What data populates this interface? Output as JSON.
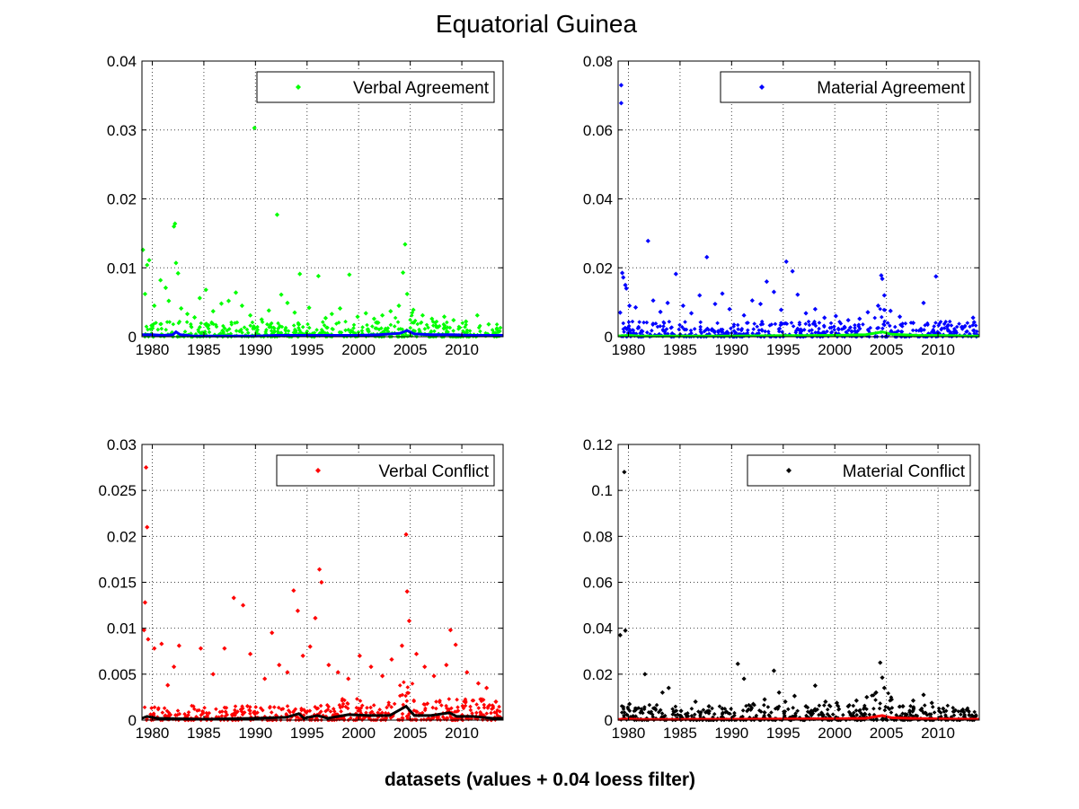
{
  "figure": {
    "title": "Equatorial Guinea",
    "xlabel": "datasets (values + 0.04 loess filter)"
  },
  "chart_data": [
    {
      "type": "scatter",
      "legend": "Verbal Agreement",
      "legend_position": "top-right",
      "point_color": "#00ff00",
      "trend_color": "#0000ff",
      "xlim": [
        1979,
        2014
      ],
      "ylim": [
        0,
        0.04
      ],
      "xticks": [
        1980,
        1985,
        1990,
        1995,
        2000,
        2005,
        2010
      ],
      "xtick_labels": [
        "1980",
        "1985",
        "1990",
        "1995",
        "2000",
        "2005",
        "2010"
      ],
      "yticks": [
        0,
        0.01,
        0.02,
        0.03,
        0.04
      ],
      "ytick_labels": [
        "0",
        "0.01",
        "0.02",
        "0.03",
        "0.04"
      ],
      "grid": true,
      "points": [
        [
          1979.1,
          0.0126
        ],
        [
          1979.5,
          0.0104
        ],
        [
          1979.7,
          0.0111
        ],
        [
          1979.3,
          0.0062
        ],
        [
          1980.2,
          0.0045
        ],
        [
          1980.8,
          0.0082
        ],
        [
          1981.3,
          0.0071
        ],
        [
          1981.6,
          0.0052
        ],
        [
          1982.1,
          0.016
        ],
        [
          1982.2,
          0.0164
        ],
        [
          1982.3,
          0.0107
        ],
        [
          1982.5,
          0.0092
        ],
        [
          1982.8,
          0.0041
        ],
        [
          1983.4,
          0.0033
        ],
        [
          1984.1,
          0.0028
        ],
        [
          1984.6,
          0.0056
        ],
        [
          1985.2,
          0.0068
        ],
        [
          1985.9,
          0.0037
        ],
        [
          1986.7,
          0.0048
        ],
        [
          1987.4,
          0.0052
        ],
        [
          1988.1,
          0.0064
        ],
        [
          1988.7,
          0.0045
        ],
        [
          1989.5,
          0.0031
        ],
        [
          1989.9,
          0.0303
        ],
        [
          1990.6,
          0.0025
        ],
        [
          1991.3,
          0.0038
        ],
        [
          1992.1,
          0.0177
        ],
        [
          1992.5,
          0.0061
        ],
        [
          1993.1,
          0.0049
        ],
        [
          1993.8,
          0.0035
        ],
        [
          1994.3,
          0.0091
        ],
        [
          1995.2,
          0.0042
        ],
        [
          1996.1,
          0.0088
        ],
        [
          1996.8,
          0.0027
        ],
        [
          1997.4,
          0.0033
        ],
        [
          1998.2,
          0.0041
        ],
        [
          1999.1,
          0.009
        ],
        [
          1999.9,
          0.0029
        ],
        [
          2000.7,
          0.0034
        ],
        [
          2001.5,
          0.0026
        ],
        [
          2002.3,
          0.0031
        ],
        [
          2003.1,
          0.0037
        ],
        [
          2003.9,
          0.0045
        ],
        [
          2004.3,
          0.0093
        ],
        [
          2004.5,
          0.0134
        ],
        [
          2004.7,
          0.0062
        ],
        [
          2005.3,
          0.0039
        ],
        [
          2006.2,
          0.0031
        ],
        [
          2007.1,
          0.0026
        ],
        [
          2008.3,
          0.0029
        ],
        [
          2009.2,
          0.0024
        ],
        [
          2010.4,
          0.0022
        ],
        [
          2011.5,
          0.0031
        ],
        [
          2012.6,
          0.0018
        ],
        [
          2013.4,
          0.0012
        ]
      ],
      "trend": [
        [
          1979,
          0.0003
        ],
        [
          1980,
          0.0003
        ],
        [
          1981,
          0.0002
        ],
        [
          1982,
          0.0003
        ],
        [
          1982.3,
          0.0007
        ],
        [
          1982.7,
          0.0003
        ],
        [
          1984,
          0.0001
        ],
        [
          1986,
          0.0001
        ],
        [
          1988,
          0.0001
        ],
        [
          1990,
          0.0001
        ],
        [
          1992,
          0.0002
        ],
        [
          1994,
          0.0002
        ],
        [
          1996,
          0.0002
        ],
        [
          1998,
          0.0002
        ],
        [
          2000,
          0.0002
        ],
        [
          2002,
          0.0003
        ],
        [
          2004,
          0.0005
        ],
        [
          2004.7,
          0.0009
        ],
        [
          2005.4,
          0.0004
        ],
        [
          2007,
          0.0003
        ],
        [
          2009,
          0.0003
        ],
        [
          2011,
          0.0002
        ],
        [
          2013,
          0.0002
        ],
        [
          2014,
          0.0002
        ]
      ]
    },
    {
      "type": "scatter",
      "legend": "Material Agreement",
      "legend_position": "top-right",
      "point_color": "#0000ff",
      "trend_color": "#00ff00",
      "xlim": [
        1979,
        2014
      ],
      "ylim": [
        0,
        0.08
      ],
      "xticks": [
        1980,
        1985,
        1990,
        1995,
        2000,
        2005,
        2010
      ],
      "xtick_labels": [
        "1980",
        "1985",
        "1990",
        "1995",
        "2000",
        "2005",
        "2010"
      ],
      "yticks": [
        0,
        0.02,
        0.04,
        0.06,
        0.08
      ],
      "ytick_labels": [
        "0",
        "0.02",
        "0.04",
        "0.06",
        "0.08"
      ],
      "grid": true,
      "points": [
        [
          1979.3,
          0.073
        ],
        [
          1979.3,
          0.0678
        ],
        [
          1979.4,
          0.0185
        ],
        [
          1979.5,
          0.0172
        ],
        [
          1979.7,
          0.015
        ],
        [
          1979.8,
          0.014
        ],
        [
          1979.2,
          0.007
        ],
        [
          1980.1,
          0.009
        ],
        [
          1980.7,
          0.0085
        ],
        [
          1981.9,
          0.0278
        ],
        [
          1982.4,
          0.0105
        ],
        [
          1983.1,
          0.0072
        ],
        [
          1983.8,
          0.0098
        ],
        [
          1984.6,
          0.0182
        ],
        [
          1985.3,
          0.009
        ],
        [
          1986.1,
          0.0068
        ],
        [
          1986.9,
          0.012
        ],
        [
          1987.6,
          0.0231
        ],
        [
          1988.4,
          0.0095
        ],
        [
          1989.1,
          0.0125
        ],
        [
          1989.8,
          0.008
        ],
        [
          1991.2,
          0.0062
        ],
        [
          1992.0,
          0.0105
        ],
        [
          1992.8,
          0.0095
        ],
        [
          1993.4,
          0.016
        ],
        [
          1994.1,
          0.013
        ],
        [
          1994.8,
          0.0078
        ],
        [
          1995.3,
          0.0218
        ],
        [
          1995.9,
          0.019
        ],
        [
          1996.4,
          0.0122
        ],
        [
          1997.2,
          0.0068
        ],
        [
          1998.1,
          0.008
        ],
        [
          1999.0,
          0.0055
        ],
        [
          2000.1,
          0.006
        ],
        [
          2001.3,
          0.0048
        ],
        [
          2002.4,
          0.0052
        ],
        [
          2003.2,
          0.0071
        ],
        [
          2004.2,
          0.009
        ],
        [
          2004.5,
          0.0178
        ],
        [
          2004.6,
          0.0168
        ],
        [
          2004.8,
          0.012
        ],
        [
          2005.4,
          0.0075
        ],
        [
          2006.3,
          0.0058
        ],
        [
          2007.6,
          0.004
        ],
        [
          2008.6,
          0.0098
        ],
        [
          2009.8,
          0.0175
        ],
        [
          2010.9,
          0.003
        ],
        [
          2012.3,
          0.0028
        ],
        [
          2013.4,
          0.0055
        ],
        [
          2013.5,
          0.0042
        ]
      ],
      "trend": [
        [
          1979,
          0.0002
        ],
        [
          1980,
          0.0004
        ],
        [
          1981,
          0.0002
        ],
        [
          1985,
          0.0002
        ],
        [
          1990,
          0.0002
        ],
        [
          1995,
          0.0003
        ],
        [
          2000,
          0.0004
        ],
        [
          2003,
          0.0006
        ],
        [
          2004.6,
          0.0014
        ],
        [
          2005.5,
          0.0007
        ],
        [
          2008,
          0.0004
        ],
        [
          2011,
          0.0003
        ],
        [
          2013,
          0.0002
        ],
        [
          2014,
          0.0002
        ]
      ]
    },
    {
      "type": "scatter",
      "legend": "Verbal Conflict",
      "legend_position": "top-right",
      "point_color": "#ff0000",
      "trend_color": "#000000",
      "xlim": [
        1979,
        2014
      ],
      "ylim": [
        0,
        0.03
      ],
      "xticks": [
        1980,
        1985,
        1990,
        1995,
        2000,
        2005,
        2010
      ],
      "xtick_labels": [
        "1980",
        "1985",
        "1990",
        "1995",
        "2000",
        "2005",
        "2010"
      ],
      "yticks": [
        0,
        0.005,
        0.01,
        0.015,
        0.02,
        0.025,
        0.03
      ],
      "ytick_labels": [
        "0",
        "0.005",
        "0.01",
        "0.015",
        "0.02",
        "0.025",
        "0.03"
      ],
      "grid": true,
      "points": [
        [
          1979.4,
          0.0275
        ],
        [
          1979.5,
          0.021
        ],
        [
          1979.3,
          0.0128
        ],
        [
          1979.2,
          0.0098
        ],
        [
          1979.6,
          0.0088
        ],
        [
          1980.2,
          0.0078
        ],
        [
          1980.9,
          0.0083
        ],
        [
          1981.5,
          0.0038
        ],
        [
          1982.1,
          0.0058
        ],
        [
          1982.6,
          0.0081
        ],
        [
          1984.7,
          0.0078
        ],
        [
          1985.9,
          0.005
        ],
        [
          1987.0,
          0.0078
        ],
        [
          1987.9,
          0.0133
        ],
        [
          1988.8,
          0.0125
        ],
        [
          1989.5,
          0.0072
        ],
        [
          1990.9,
          0.0045
        ],
        [
          1991.6,
          0.0095
        ],
        [
          1992.3,
          0.006
        ],
        [
          1993.1,
          0.0052
        ],
        [
          1993.7,
          0.0141
        ],
        [
          1994.1,
          0.0119
        ],
        [
          1994.6,
          0.007
        ],
        [
          1995.3,
          0.008
        ],
        [
          1995.8,
          0.0111
        ],
        [
          1996.2,
          0.0164
        ],
        [
          1996.4,
          0.015
        ],
        [
          1997.1,
          0.006
        ],
        [
          1998.0,
          0.0052
        ],
        [
          1999.0,
          0.0045
        ],
        [
          2000.1,
          0.007
        ],
        [
          2001.2,
          0.0058
        ],
        [
          2002.3,
          0.0048
        ],
        [
          2003.2,
          0.0066
        ],
        [
          2004.2,
          0.0081
        ],
        [
          2004.6,
          0.0202
        ],
        [
          2004.7,
          0.014
        ],
        [
          2004.9,
          0.0108
        ],
        [
          2005.6,
          0.0072
        ],
        [
          2006.4,
          0.0058
        ],
        [
          2007.3,
          0.0048
        ],
        [
          2008.5,
          0.006
        ],
        [
          2008.9,
          0.0098
        ],
        [
          2009.4,
          0.0082
        ],
        [
          2010.5,
          0.0052
        ],
        [
          2011.6,
          0.004
        ],
        [
          2012.4,
          0.0035
        ],
        [
          2013.3,
          0.002
        ]
      ],
      "trend": [
        [
          1979,
          0.0002
        ],
        [
          1979.5,
          0.0004
        ],
        [
          1980.5,
          0.0002
        ],
        [
          1985,
          0.0001
        ],
        [
          1990,
          0.0002
        ],
        [
          1993,
          0.0003
        ],
        [
          1994.2,
          0.0007
        ],
        [
          1994.7,
          0.0002
        ],
        [
          1996,
          0.0005
        ],
        [
          1997,
          0.0002
        ],
        [
          1999,
          0.0006
        ],
        [
          2001,
          0.0005
        ],
        [
          2003,
          0.0005
        ],
        [
          2004.6,
          0.0015
        ],
        [
          2005.4,
          0.0005
        ],
        [
          2007,
          0.0005
        ],
        [
          2008.8,
          0.0008
        ],
        [
          2009.5,
          0.0004
        ],
        [
          2011,
          0.0004
        ],
        [
          2013,
          0.0002
        ],
        [
          2014,
          0.0002
        ]
      ]
    },
    {
      "type": "scatter",
      "legend": "Material Conflict",
      "legend_position": "top-right",
      "point_color": "#000000",
      "trend_color": "#ff0000",
      "xlim": [
        1979,
        2014
      ],
      "ylim": [
        0,
        0.12
      ],
      "xticks": [
        1980,
        1985,
        1990,
        1995,
        2000,
        2005,
        2010
      ],
      "xtick_labels": [
        "1980",
        "1985",
        "1990",
        "1995",
        "2000",
        "2005",
        "2010"
      ],
      "yticks": [
        0,
        0.02,
        0.04,
        0.06,
        0.08,
        0.1,
        0.12
      ],
      "ytick_labels": [
        "0",
        "0.02",
        "0.04",
        "0.06",
        "0.08",
        "0.1",
        "0.12"
      ],
      "grid": true,
      "points": [
        [
          1979.6,
          0.108
        ],
        [
          1979.2,
          0.037
        ],
        [
          1979.7,
          0.039
        ],
        [
          1980.1,
          0.007
        ],
        [
          1981.6,
          0.02
        ],
        [
          1983.3,
          0.012
        ],
        [
          1983.9,
          0.014
        ],
        [
          1985.1,
          0.004
        ],
        [
          1986.5,
          0.008
        ],
        [
          1987.8,
          0.006
        ],
        [
          1989.1,
          0.005
        ],
        [
          1990.6,
          0.0245
        ],
        [
          1991.2,
          0.018
        ],
        [
          1992.1,
          0.007
        ],
        [
          1993.2,
          0.009
        ],
        [
          1994.1,
          0.0215
        ],
        [
          1994.6,
          0.012
        ],
        [
          1995.2,
          0.008
        ],
        [
          1996.1,
          0.0105
        ],
        [
          1997.2,
          0.006
        ],
        [
          1998.1,
          0.015
        ],
        [
          1999.1,
          0.008
        ],
        [
          2000.2,
          0.0075
        ],
        [
          2001.3,
          0.006
        ],
        [
          2002.1,
          0.0085
        ],
        [
          2003.1,
          0.01
        ],
        [
          2004.0,
          0.012
        ],
        [
          2004.4,
          0.025
        ],
        [
          2004.6,
          0.0185
        ],
        [
          2004.8,
          0.014
        ],
        [
          2005.5,
          0.009
        ],
        [
          2006.6,
          0.006
        ],
        [
          2007.6,
          0.0085
        ],
        [
          2008.6,
          0.011
        ],
        [
          2009.4,
          0.0075
        ],
        [
          2010.5,
          0.005
        ],
        [
          2011.6,
          0.004
        ],
        [
          2012.5,
          0.0035
        ],
        [
          2013.3,
          0.002
        ]
      ],
      "trend": [
        [
          1979,
          0.0003
        ],
        [
          1980,
          0.0005
        ],
        [
          1981,
          0.0003
        ],
        [
          1985,
          0.0003
        ],
        [
          1990,
          0.0004
        ],
        [
          1995,
          0.0005
        ],
        [
          2000,
          0.0006
        ],
        [
          2003,
          0.0008
        ],
        [
          2004.6,
          0.002
        ],
        [
          2005.5,
          0.001
        ],
        [
          2008,
          0.0007
        ],
        [
          2011,
          0.0005
        ],
        [
          2013,
          0.0004
        ],
        [
          2014,
          0.0004
        ]
      ]
    }
  ]
}
